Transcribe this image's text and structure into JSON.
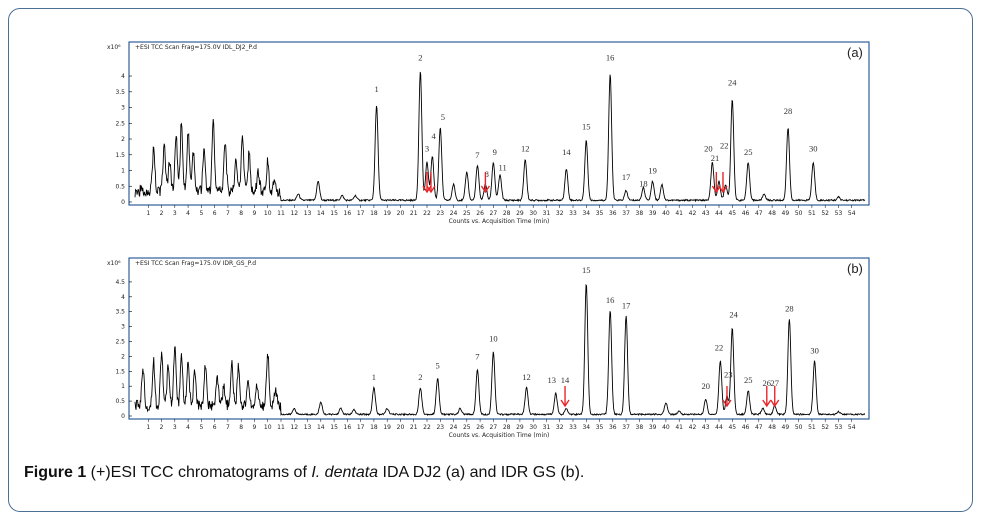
{
  "caption": {
    "label": "Figure 1",
    "text_before": " (+)ESI TCC chromatograms of ",
    "italic": "I. dentata",
    "text_after": " IDA DJ2 (a) and IDR GS (b)."
  },
  "colors": {
    "frame": "#4a6f93",
    "arrow": "#e8262a",
    "trace": "#000000"
  },
  "chart_data": [
    {
      "type": "line",
      "panel_label": "(a)",
      "header": "+ESI TCC Scan Frag=175.0V IDL_DJ2_P.d",
      "y_exponent": "x10⁶",
      "xlabel": "Counts vs. Acquisition Time (min)",
      "xlim": [
        0,
        55
      ],
      "ylim": [
        0,
        4.7
      ],
      "y_ticks": [
        "0",
        "0.5",
        "1",
        "1.5",
        "2",
        "2.5",
        "3",
        "3.5",
        "4"
      ],
      "x_ticks": [
        "1",
        "2",
        "3",
        "4",
        "5",
        "6",
        "7",
        "8",
        "9",
        "10",
        "11",
        "12",
        "13",
        "14",
        "15",
        "16",
        "17",
        "18",
        "19",
        "20",
        "21",
        "22",
        "23",
        "24",
        "25",
        "26",
        "27",
        "28",
        "29",
        "30",
        "31",
        "32",
        "33",
        "34",
        "35",
        "36",
        "37",
        "38",
        "39",
        "40",
        "41",
        "42",
        "43",
        "44",
        "45",
        "46",
        "47",
        "48",
        "49",
        "50",
        "51",
        "52",
        "53",
        "54"
      ],
      "peaks": [
        {
          "t": 1.4,
          "h": 1.3
        },
        {
          "t": 2.2,
          "h": 1.5
        },
        {
          "t": 2.6,
          "h": 1.0
        },
        {
          "t": 3.1,
          "h": 1.8
        },
        {
          "t": 3.5,
          "h": 2.2
        },
        {
          "t": 4.0,
          "h": 1.9
        },
        {
          "t": 4.4,
          "h": 1.2
        },
        {
          "t": 5.2,
          "h": 1.3
        },
        {
          "t": 5.9,
          "h": 2.2
        },
        {
          "t": 6.8,
          "h": 1.6
        },
        {
          "t": 7.6,
          "h": 1.0
        },
        {
          "t": 8.1,
          "h": 1.8
        },
        {
          "t": 8.6,
          "h": 1.2
        },
        {
          "t": 9.3,
          "h": 0.6
        },
        {
          "t": 10.0,
          "h": 0.9
        },
        {
          "t": 10.5,
          "h": 0.4
        },
        {
          "t": 12.3,
          "h": 0.2
        },
        {
          "t": 13.8,
          "h": 0.6
        },
        {
          "t": 15.6,
          "h": 0.15
        },
        {
          "t": 16.6,
          "h": 0.15
        },
        {
          "t": 18.2,
          "h": 3.0
        },
        {
          "t": 21.5,
          "h": 4.1
        },
        {
          "t": 22.0,
          "h": 1.2
        },
        {
          "t": 22.4,
          "h": 1.4
        },
        {
          "t": 23.0,
          "h": 2.3
        },
        {
          "t": 24.0,
          "h": 0.5
        },
        {
          "t": 25.0,
          "h": 0.9
        },
        {
          "t": 25.8,
          "h": 1.1
        },
        {
          "t": 26.4,
          "h": 0.5
        },
        {
          "t": 27.0,
          "h": 1.2
        },
        {
          "t": 27.5,
          "h": 0.8
        },
        {
          "t": 29.4,
          "h": 1.3
        },
        {
          "t": 32.5,
          "h": 1.0
        },
        {
          "t": 34.0,
          "h": 1.9
        },
        {
          "t": 35.8,
          "h": 4.0
        },
        {
          "t": 37.0,
          "h": 0.3
        },
        {
          "t": 38.3,
          "h": 0.4
        },
        {
          "t": 39.0,
          "h": 0.6
        },
        {
          "t": 39.7,
          "h": 0.5
        },
        {
          "t": 43.5,
          "h": 1.2
        },
        {
          "t": 44.0,
          "h": 0.6
        },
        {
          "t": 44.5,
          "h": 0.5
        },
        {
          "t": 45.0,
          "h": 3.2
        },
        {
          "t": 46.2,
          "h": 1.2
        },
        {
          "t": 47.4,
          "h": 0.2
        },
        {
          "t": 49.2,
          "h": 2.3
        },
        {
          "t": 51.1,
          "h": 1.2
        },
        {
          "t": 53.0,
          "h": 0.1
        }
      ],
      "peak_labels": [
        {
          "label": "1",
          "t": 18.2,
          "y": 3.5
        },
        {
          "label": "2",
          "t": 21.5,
          "y": 4.5
        },
        {
          "label": "3",
          "t": 22.0,
          "y": 1.6
        },
        {
          "label": "4",
          "t": 22.5,
          "y": 2.0
        },
        {
          "label": "5",
          "t": 23.2,
          "y": 2.6
        },
        {
          "label": "7",
          "t": 25.8,
          "y": 1.4
        },
        {
          "label": "8",
          "t": 26.5,
          "y": 0.8
        },
        {
          "label": "9",
          "t": 27.1,
          "y": 1.5
        },
        {
          "label": "11",
          "t": 27.7,
          "y": 1.0
        },
        {
          "label": "12",
          "t": 29.4,
          "y": 1.6
        },
        {
          "label": "14",
          "t": 32.5,
          "y": 1.5
        },
        {
          "label": "15",
          "t": 34.0,
          "y": 2.3
        },
        {
          "label": "16",
          "t": 35.8,
          "y": 4.5
        },
        {
          "label": "17",
          "t": 37.0,
          "y": 0.7
        },
        {
          "label": "18",
          "t": 38.3,
          "y": 0.5
        },
        {
          "label": "19",
          "t": 39.0,
          "y": 0.9
        },
        {
          "label": "20",
          "t": 43.2,
          "y": 1.6
        },
        {
          "label": "21",
          "t": 43.7,
          "y": 1.3
        },
        {
          "label": "22",
          "t": 44.4,
          "y": 1.7
        },
        {
          "label": "24",
          "t": 45.0,
          "y": 3.7
        },
        {
          "label": "25",
          "t": 46.2,
          "y": 1.5
        },
        {
          "label": "28",
          "t": 49.2,
          "y": 2.8
        },
        {
          "label": "30",
          "t": 51.1,
          "y": 1.6
        }
      ],
      "arrows": [
        {
          "t": 22.0
        },
        {
          "t": 22.3
        },
        {
          "t": 26.4
        },
        {
          "t": 43.8
        },
        {
          "t": 44.3
        }
      ]
    },
    {
      "type": "line",
      "panel_label": "(b)",
      "header": "+ESI TCC Scan Frag=175.0V IDR_GS_P.d",
      "y_exponent": "x10⁶",
      "xlabel": "Counts vs. Acquisition Time (min)",
      "xlim": [
        0,
        55
      ],
      "ylim": [
        0,
        4.9
      ],
      "y_ticks": [
        "0",
        "0.5",
        "1",
        "1.5",
        "2",
        "2.5",
        "3",
        "3.5",
        "4",
        "4.5"
      ],
      "x_ticks": [
        "1",
        "2",
        "3",
        "4",
        "5",
        "6",
        "7",
        "8",
        "9",
        "10",
        "11",
        "12",
        "13",
        "14",
        "15",
        "16",
        "17",
        "18",
        "19",
        "20",
        "21",
        "22",
        "23",
        "24",
        "25",
        "26",
        "27",
        "28",
        "29",
        "30",
        "31",
        "32",
        "33",
        "34",
        "35",
        "36",
        "37",
        "38",
        "39",
        "40",
        "41",
        "42",
        "43",
        "44",
        "45",
        "46",
        "47",
        "48",
        "49",
        "50",
        "51",
        "52",
        "53",
        "54"
      ],
      "peaks": [
        {
          "t": 0.6,
          "h": 1.3
        },
        {
          "t": 1.4,
          "h": 1.5
        },
        {
          "t": 2.0,
          "h": 1.8
        },
        {
          "t": 2.5,
          "h": 1.4
        },
        {
          "t": 3.0,
          "h": 2.0
        },
        {
          "t": 3.5,
          "h": 1.7
        },
        {
          "t": 4.0,
          "h": 1.5
        },
        {
          "t": 4.5,
          "h": 1.1
        },
        {
          "t": 5.3,
          "h": 1.4
        },
        {
          "t": 6.2,
          "h": 0.9
        },
        {
          "t": 6.7,
          "h": 0.6
        },
        {
          "t": 7.3,
          "h": 1.4
        },
        {
          "t": 7.8,
          "h": 1.3
        },
        {
          "t": 8.5,
          "h": 0.8
        },
        {
          "t": 9.2,
          "h": 0.7
        },
        {
          "t": 10.0,
          "h": 1.8
        },
        {
          "t": 10.6,
          "h": 0.5
        },
        {
          "t": 12.0,
          "h": 0.2
        },
        {
          "t": 14.0,
          "h": 0.4
        },
        {
          "t": 15.5,
          "h": 0.2
        },
        {
          "t": 16.5,
          "h": 0.15
        },
        {
          "t": 18.0,
          "h": 0.9
        },
        {
          "t": 19.0,
          "h": 0.2
        },
        {
          "t": 21.5,
          "h": 0.9
        },
        {
          "t": 22.8,
          "h": 1.2
        },
        {
          "t": 24.5,
          "h": 0.2
        },
        {
          "t": 25.8,
          "h": 1.5
        },
        {
          "t": 27.0,
          "h": 2.1
        },
        {
          "t": 29.5,
          "h": 0.9
        },
        {
          "t": 31.7,
          "h": 0.7
        },
        {
          "t": 32.5,
          "h": 0.2
        },
        {
          "t": 34.0,
          "h": 4.4
        },
        {
          "t": 35.8,
          "h": 3.5
        },
        {
          "t": 37.0,
          "h": 3.3
        },
        {
          "t": 40.0,
          "h": 0.4
        },
        {
          "t": 41.0,
          "h": 0.1
        },
        {
          "t": 43.0,
          "h": 0.5
        },
        {
          "t": 44.1,
          "h": 1.8
        },
        {
          "t": 44.6,
          "h": 0.6
        },
        {
          "t": 45.0,
          "h": 2.9
        },
        {
          "t": 46.2,
          "h": 0.8
        },
        {
          "t": 47.3,
          "h": 0.2
        },
        {
          "t": 48.2,
          "h": 0.3
        },
        {
          "t": 49.3,
          "h": 3.2
        },
        {
          "t": 51.2,
          "h": 1.8
        },
        {
          "t": 53.0,
          "h": 0.1
        }
      ],
      "peak_labels": [
        {
          "label": "1",
          "t": 18.0,
          "y": 1.2
        },
        {
          "label": "2",
          "t": 21.5,
          "y": 1.2
        },
        {
          "label": "5",
          "t": 22.8,
          "y": 1.6
        },
        {
          "label": "7",
          "t": 25.8,
          "y": 1.9
        },
        {
          "label": "10",
          "t": 27.0,
          "y": 2.5
        },
        {
          "label": "12",
          "t": 29.5,
          "y": 1.2
        },
        {
          "label": "13",
          "t": 31.4,
          "y": 1.1
        },
        {
          "label": "14",
          "t": 32.4,
          "y": 1.1
        },
        {
          "label": "15",
          "t": 34.0,
          "y": 4.8
        },
        {
          "label": "16",
          "t": 35.8,
          "y": 3.8
        },
        {
          "label": "17",
          "t": 37.0,
          "y": 3.6
        },
        {
          "label": "20",
          "t": 43.0,
          "y": 0.9
        },
        {
          "label": "22",
          "t": 44.0,
          "y": 2.2
        },
        {
          "label": "23",
          "t": 44.7,
          "y": 1.3
        },
        {
          "label": "24",
          "t": 45.1,
          "y": 3.3
        },
        {
          "label": "25",
          "t": 46.2,
          "y": 1.1
        },
        {
          "label": "26",
          "t": 47.6,
          "y": 1.0
        },
        {
          "label": "27",
          "t": 48.2,
          "y": 1.0
        },
        {
          "label": "28",
          "t": 49.3,
          "y": 3.5
        },
        {
          "label": "30",
          "t": 51.2,
          "y": 2.1
        }
      ],
      "arrows": [
        {
          "t": 32.4
        },
        {
          "t": 44.6
        },
        {
          "t": 47.6
        },
        {
          "t": 48.2
        }
      ]
    }
  ]
}
